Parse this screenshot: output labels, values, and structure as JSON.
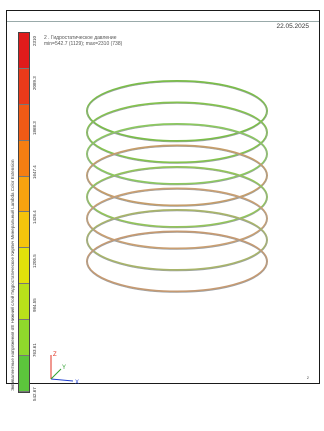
{
  "header": {
    "date": "22.05.2025",
    "line1": "2 . Гидростатическое давление",
    "line2": "min=542.7 (1129); max=2310 (738)"
  },
  "legend": {
    "vertical_title": "Эквивалентные напряжения σЕ Нижний слой Гидростатическое Кирпич Минеральный Lambda Color Extension",
    "ticks": [
      "2310",
      "2089.3",
      "1868.3",
      "1647.4",
      "1426.4",
      "1205.5",
      "984.55",
      "763.61",
      "542.67"
    ],
    "colors": [
      "#e01b1b",
      "#ea3a1a",
      "#f05a16",
      "#f57e12",
      "#f7a20f",
      "#f5c40c",
      "#e2e10a",
      "#b9e11a",
      "#8fd82c",
      "#5cc63c"
    ]
  },
  "rings": {
    "count": 8,
    "colors": [
      "#7bbd4a",
      "#84c24f",
      "#8cc860",
      "#c59d6a",
      "#93c45b",
      "#c99f72",
      "#a8b46a",
      "#c59a72"
    ]
  },
  "axes": {
    "x": "X",
    "y": "Y",
    "z": "Z"
  },
  "page_number": "2"
}
